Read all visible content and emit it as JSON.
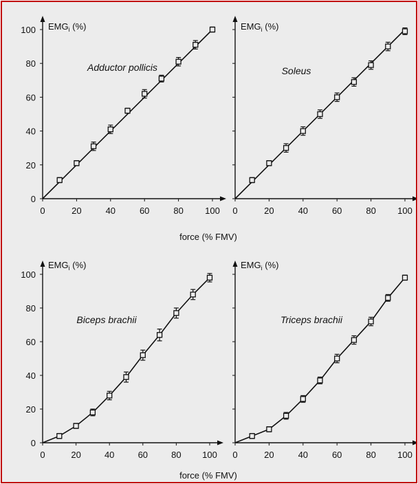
{
  "xlabel": "force (% FMV)",
  "colors": {
    "frame": "#c00000",
    "background": "#ececec",
    "ink": "#111111"
  },
  "chart_data": [
    {
      "type": "line",
      "title": "Adductor pollicis",
      "ylabel_main": "EMG",
      "ylabel_sub": "i",
      "ylabel_unit": " (%)",
      "xlim": [
        0,
        100
      ],
      "ylim": [
        0,
        100
      ],
      "x_ticks": [
        0,
        20,
        40,
        60,
        80,
        100
      ],
      "y_ticks": [
        0,
        20,
        40,
        60,
        80,
        100
      ],
      "line": {
        "x": [
          0,
          100
        ],
        "y": [
          0,
          100
        ]
      },
      "x": [
        10,
        20,
        30,
        40,
        50,
        60,
        70,
        80,
        90,
        100
      ],
      "y": [
        11,
        21,
        31,
        41,
        52,
        62,
        71,
        81,
        91,
        100
      ],
      "err": [
        1.5,
        1.5,
        2.5,
        2.5,
        1.5,
        2.5,
        2,
        2.5,
        2.5,
        1.5
      ]
    },
    {
      "type": "line",
      "title": "Soleus",
      "ylabel_main": "EMG",
      "ylabel_sub": "i",
      "ylabel_unit": " (%)",
      "xlim": [
        0,
        100
      ],
      "ylim": [
        0,
        100
      ],
      "x_ticks": [
        0,
        20,
        40,
        60,
        80,
        100
      ],
      "y_ticks": [],
      "line": {
        "x": [
          0,
          100
        ],
        "y": [
          0,
          100
        ]
      },
      "x": [
        10,
        20,
        30,
        40,
        50,
        60,
        70,
        80,
        90,
        100
      ],
      "y": [
        11,
        21,
        30,
        40,
        50,
        60,
        69,
        79,
        90,
        99
      ],
      "err": [
        1.5,
        1.5,
        2.5,
        2.5,
        2.5,
        2.5,
        2.5,
        2.5,
        2.5,
        2
      ]
    },
    {
      "type": "line",
      "title": "Biceps brachii",
      "ylabel_main": "EMG",
      "ylabel_sub": "i",
      "ylabel_unit": " (%)",
      "xlim": [
        0,
        100
      ],
      "ylim": [
        0,
        100
      ],
      "x_ticks": [
        0,
        20,
        40,
        60,
        80,
        100
      ],
      "y_ticks": [
        0,
        20,
        40,
        60,
        80,
        100
      ],
      "line": {
        "x": [
          0,
          10,
          20,
          30,
          40,
          50,
          60,
          70,
          80,
          90,
          100
        ],
        "y": [
          0,
          4,
          10,
          18,
          28,
          39,
          52,
          64,
          77,
          88,
          98
        ]
      },
      "x": [
        10,
        20,
        30,
        40,
        50,
        60,
        70,
        80,
        90,
        100
      ],
      "y": [
        4,
        10,
        18,
        28,
        39,
        52,
        64,
        77,
        88,
        98
      ],
      "err": [
        1.5,
        1.5,
        2,
        2.5,
        3,
        3,
        3.5,
        3,
        3,
        2.5
      ]
    },
    {
      "type": "line",
      "title": "Triceps brachii",
      "ylabel_main": "EMG",
      "ylabel_sub": "i",
      "ylabel_unit": " (%)",
      "xlim": [
        0,
        100
      ],
      "ylim": [
        0,
        100
      ],
      "x_ticks": [
        0,
        20,
        40,
        60,
        80,
        100
      ],
      "y_ticks": [],
      "line": {
        "x": [
          0,
          10,
          20,
          30,
          40,
          50,
          60,
          70,
          80,
          90,
          100
        ],
        "y": [
          0,
          4,
          8,
          16,
          26,
          37,
          50,
          61,
          72,
          86,
          98
        ]
      },
      "x": [
        10,
        20,
        30,
        40,
        50,
        60,
        70,
        80,
        90,
        100
      ],
      "y": [
        4,
        8,
        16,
        26,
        37,
        50,
        61,
        72,
        86,
        98
      ],
      "err": [
        1.5,
        1.5,
        2,
        2,
        2,
        2.5,
        2.5,
        2.5,
        2,
        1.5
      ]
    }
  ]
}
